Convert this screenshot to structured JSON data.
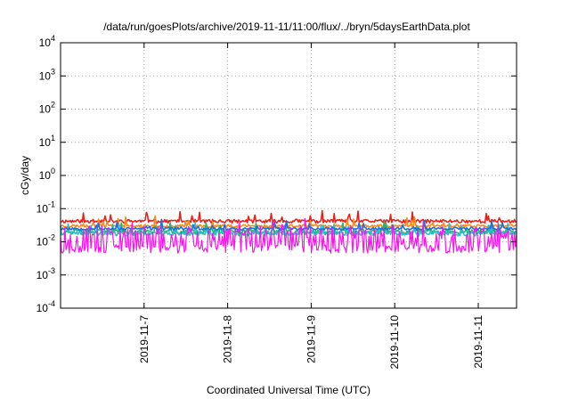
{
  "chart_data": {
    "type": "line",
    "title": "/data/run/goesPlots/archive/2019-11-11/11:00/flux/../bryn/5daysEarthData.plot",
    "xlabel": "Coordinated Universal Time (UTC)",
    "ylabel": "cGy/day",
    "yscale": "log",
    "ylim": [
      0.0001,
      10000
    ],
    "y_ticks": [
      {
        "value": 0.0001,
        "base": "10",
        "exp": "-4"
      },
      {
        "value": 0.001,
        "base": "10",
        "exp": "-3"
      },
      {
        "value": 0.01,
        "base": "10",
        "exp": "-2"
      },
      {
        "value": 0.1,
        "base": "10",
        "exp": "-1"
      },
      {
        "value": 1,
        "base": "10",
        "exp": "0"
      },
      {
        "value": 10,
        "base": "10",
        "exp": "1"
      },
      {
        "value": 100,
        "base": "10",
        "exp": "2"
      },
      {
        "value": 1000,
        "base": "10",
        "exp": "3"
      },
      {
        "value": 10000,
        "base": "10",
        "exp": "4"
      }
    ],
    "xlim": [
      "2019-11-06 00:00",
      "2019-11-11 11:00"
    ],
    "x_ticks": [
      "2019-11-7",
      "2019-11-8",
      "2019-11-9",
      "2019-11-10",
      "2019-11-11"
    ],
    "grid": true,
    "series": [
      {
        "color": "#e8221a",
        "level": 0.042,
        "spread": 0.12,
        "seed": 11
      },
      {
        "color": "#f58a1f",
        "level": 0.03,
        "spread": 0.1,
        "seed": 23
      },
      {
        "color": "#22b573",
        "level": 0.02,
        "spread": 0.18,
        "seed": 37
      },
      {
        "color": "#29c0c8",
        "level": 0.018,
        "spread": 0.16,
        "seed": 41
      },
      {
        "color": "#1f6fe0",
        "level": 0.025,
        "spread": 0.09,
        "seed": 53
      },
      {
        "color": "#ff10ee",
        "level": 0.0065,
        "spread": 0.3,
        "seed": 67
      }
    ]
  }
}
